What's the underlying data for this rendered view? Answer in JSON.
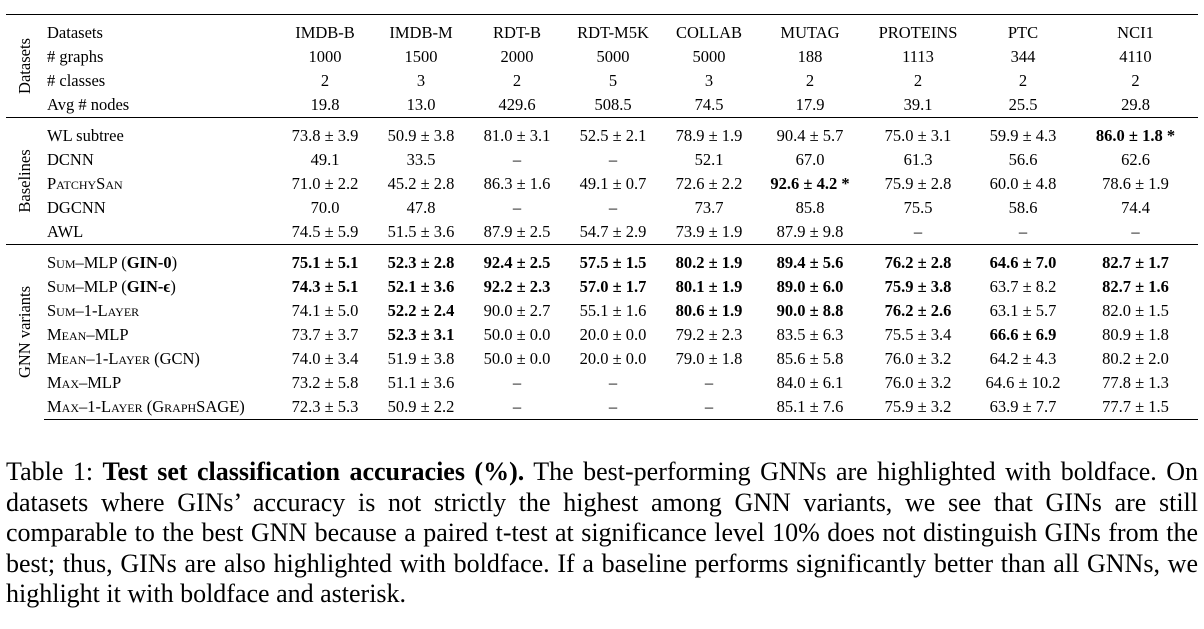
{
  "columns": [
    "IMDB-B",
    "IMDB-M",
    "RDT-B",
    "RDT-M5K",
    "COLLAB",
    "MUTAG",
    "PROTEINS",
    "PTC",
    "NCI1"
  ],
  "groups": {
    "datasets": "Datasets",
    "baselines": "Baselines",
    "gnn": "GNN variants"
  },
  "datasets_rows": [
    {
      "name": "# graphs",
      "cells": [
        "1000",
        "1500",
        "2000",
        "5000",
        "5000",
        "188",
        "1113",
        "344",
        "4110"
      ]
    },
    {
      "name": "# classes",
      "cells": [
        "2",
        "3",
        "2",
        "5",
        "3",
        "2",
        "2",
        "2",
        "2"
      ]
    },
    {
      "name": "Avg # nodes",
      "cells": [
        "19.8",
        "13.0",
        "429.6",
        "508.5",
        "74.5",
        "17.9",
        "39.1",
        "25.5",
        "29.8"
      ]
    }
  ],
  "header_label": "Datasets",
  "baseline_rows": [
    {
      "name": "WL subtree",
      "cells": [
        "73.8 ± 3.9",
        "50.9 ± 3.8",
        "81.0 ± 3.1",
        "52.5 ± 2.1",
        "78.9 ± 1.9",
        "90.4 ± 5.7",
        "75.0 ± 3.1",
        "59.9 ± 4.3",
        "86.0 ± 1.8 *"
      ],
      "bold": [
        8
      ]
    },
    {
      "name": "DCNN",
      "cells": [
        "49.1",
        "33.5",
        "–",
        "–",
        "52.1",
        "67.0",
        "61.3",
        "56.6",
        "62.6"
      ],
      "bold": []
    },
    {
      "name": "PatchySan",
      "cells": [
        "71.0 ± 2.2",
        "45.2 ± 2.8",
        "86.3 ± 1.6",
        "49.1 ± 0.7",
        "72.6 ± 2.2",
        "92.6 ± 4.2 *",
        "75.9 ± 2.8",
        "60.0 ± 4.8",
        "78.6 ± 1.9"
      ],
      "bold": [
        5
      ],
      "sc": true
    },
    {
      "name": "DGCNN",
      "cells": [
        "70.0",
        "47.8",
        "–",
        "–",
        "73.7",
        "85.8",
        "75.5",
        "58.6",
        "74.4"
      ],
      "bold": []
    },
    {
      "name": "AWL",
      "cells": [
        "74.5 ± 5.9",
        "51.5 ± 3.6",
        "87.9 ± 2.5",
        "54.7 ± 2.9",
        "73.9 ± 1.9",
        "87.9 ± 9.8",
        "–",
        "–",
        "–"
      ],
      "bold": []
    }
  ],
  "gnn_rows": [
    {
      "name": "Sum–MLP (",
      "name_bold": "GIN-0",
      "name_tail": ")",
      "cells": [
        "75.1 ± 5.1",
        "52.3 ± 2.8",
        "92.4 ± 2.5",
        "57.5 ± 1.5",
        "80.2 ± 1.9",
        "89.4 ± 5.6",
        "76.2 ± 2.8",
        "64.6 ± 7.0",
        "82.7 ± 1.7"
      ],
      "bold": [
        0,
        1,
        2,
        3,
        4,
        5,
        6,
        7,
        8
      ]
    },
    {
      "name": "Sum–MLP (",
      "name_bold": "GIN-ϵ",
      "name_tail": ")",
      "cells": [
        "74.3 ± 5.1",
        "52.1 ± 3.6",
        "92.2 ± 2.3",
        "57.0 ± 1.7",
        "80.1 ± 1.9",
        "89.0 ± 6.0",
        "75.9 ± 3.8",
        "63.7 ± 8.2",
        "82.7 ± 1.6"
      ],
      "bold": [
        0,
        1,
        2,
        3,
        4,
        5,
        6,
        8
      ]
    },
    {
      "name": "Sum–1-Layer",
      "name_bold": "",
      "name_tail": "",
      "cells": [
        "74.1 ± 5.0",
        "52.2 ± 2.4",
        "90.0 ± 2.7",
        "55.1 ± 1.6",
        "80.6 ± 1.9",
        "90.0 ± 8.8",
        "76.2 ± 2.6",
        "63.1 ± 5.7",
        "82.0 ± 1.5"
      ],
      "bold": [
        1,
        4,
        5,
        6
      ]
    },
    {
      "name": "Mean–MLP",
      "name_bold": "",
      "name_tail": "",
      "cells": [
        "73.7 ± 3.7",
        "52.3 ± 3.1",
        "50.0 ± 0.0",
        "20.0 ± 0.0",
        "79.2 ± 2.3",
        "83.5 ± 6.3",
        "75.5 ± 3.4",
        "66.6 ± 6.9",
        "80.9 ± 1.8"
      ],
      "bold": [
        1,
        7
      ]
    },
    {
      "name": "Mean–1-Layer (GCN)",
      "name_bold": "",
      "name_tail": "",
      "cells": [
        "74.0 ± 3.4",
        "51.9 ± 3.8",
        "50.0 ± 0.0",
        "20.0 ± 0.0",
        "79.0 ± 1.8",
        "85.6 ± 5.8",
        "76.0 ± 3.2",
        "64.2 ± 4.3",
        "80.2 ± 2.0"
      ],
      "bold": []
    },
    {
      "name": "Max–MLP",
      "name_bold": "",
      "name_tail": "",
      "cells": [
        "73.2 ± 5.8",
        "51.1 ± 3.6",
        "–",
        "–",
        "–",
        "84.0 ± 6.1",
        "76.0 ± 3.2",
        "64.6 ± 10.2",
        "77.8 ± 1.3"
      ],
      "bold": []
    },
    {
      "name": "Max–1-Layer (GraphSAGE)",
      "name_bold": "",
      "name_tail": "",
      "cells": [
        "72.3 ± 5.3",
        "50.9 ± 2.2",
        "–",
        "–",
        "–",
        "85.1 ± 7.6",
        "75.9 ± 3.2",
        "63.9 ± 7.7",
        "77.7 ± 1.5"
      ],
      "bold": []
    }
  ],
  "caption": {
    "prefix": "Table 1: ",
    "lead": "Test set classification accuracies (%).",
    "body": " The best-performing GNNs are highlighted with boldface. On datasets where GINs’ accuracy is not strictly the highest among GNN variants, we see that GINs are still comparable to the best GNN because a paired t-test at significance level 10% does not distinguish GINs from the best; thus, GINs are also highlighted with boldface. If a baseline performs significantly better than all GNNs, we highlight it with boldface and asterisk."
  }
}
